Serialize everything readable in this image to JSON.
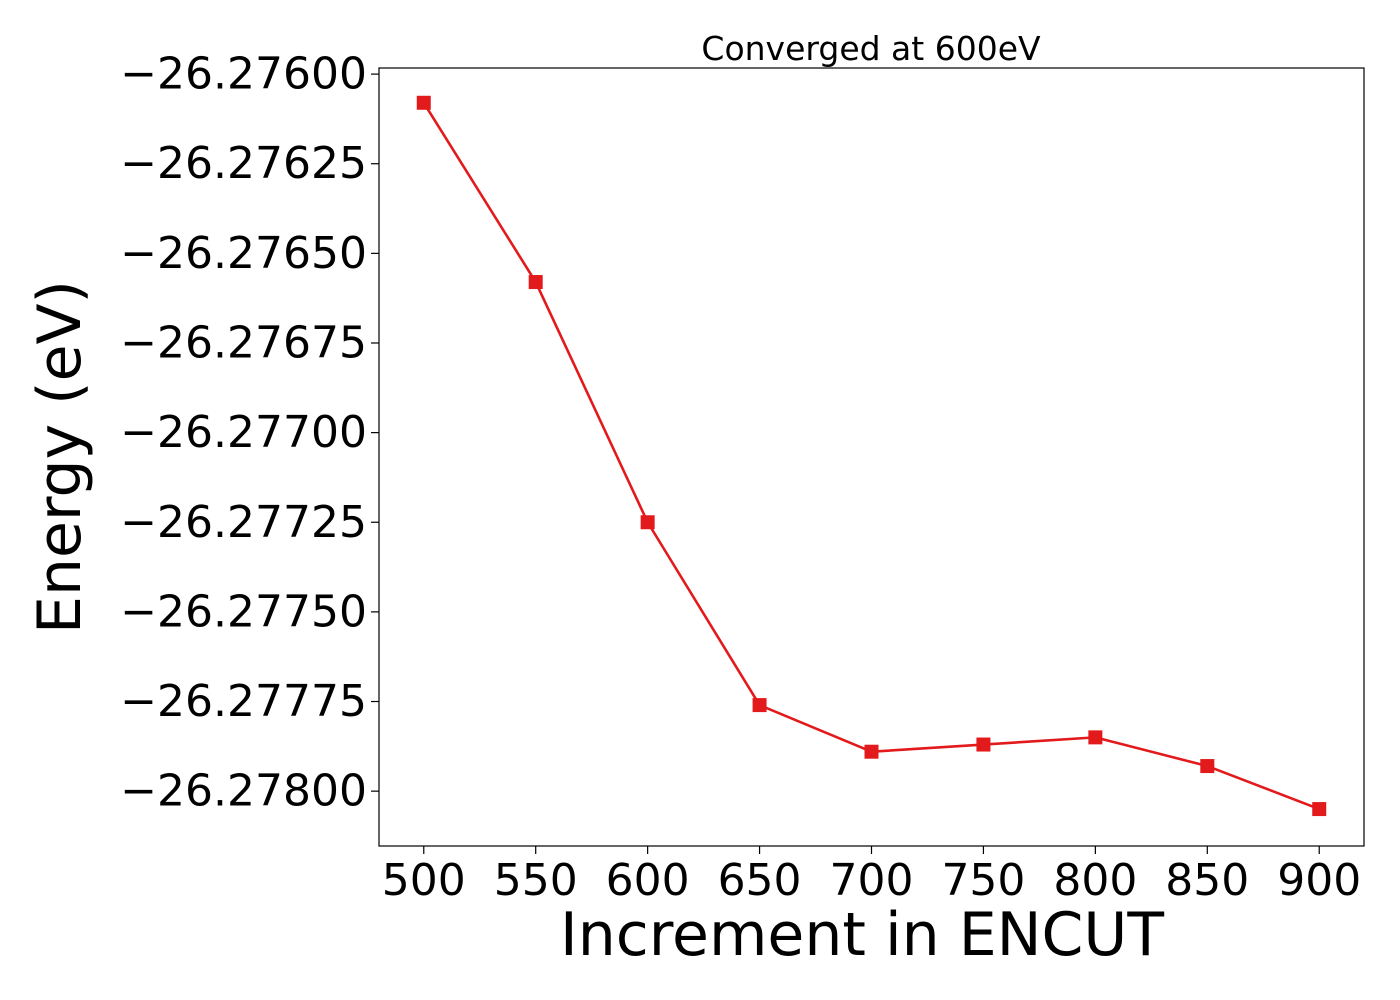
{
  "chart_data": {
    "type": "line",
    "title": "Converged at 600eV",
    "xlabel": "Increment in ENCUT",
    "ylabel": "Energy (eV)",
    "x": [
      500,
      550,
      600,
      650,
      700,
      750,
      800,
      850,
      900
    ],
    "series": [
      {
        "values": [
          -26.27608,
          -26.27658,
          -26.27725,
          -26.27776,
          -26.27789,
          -26.27787,
          -26.27785,
          -26.27793,
          -26.27805
        ],
        "color": "#e31a1c",
        "marker": "square"
      }
    ],
    "xticks": [
      500,
      550,
      600,
      650,
      700,
      750,
      800,
      850,
      900
    ],
    "xtick_labels": [
      "500",
      "550",
      "600",
      "650",
      "700",
      "750",
      "800",
      "850",
      "900"
    ],
    "yticks": [
      -26.276,
      -26.27625,
      -26.2765,
      -26.27675,
      -26.277,
      -26.27725,
      -26.2775,
      -26.27775,
      -26.278
    ],
    "ytick_labels": [
      "−26.27600",
      "−26.27625",
      "−26.27650",
      "−26.27675",
      "−26.27700",
      "−26.27725",
      "−26.27750",
      "−26.27775",
      "−26.27800"
    ],
    "xlim": [
      480,
      920
    ],
    "ylim": [
      -26.278153,
      -26.275983
    ],
    "grid": false,
    "legend": "none"
  }
}
